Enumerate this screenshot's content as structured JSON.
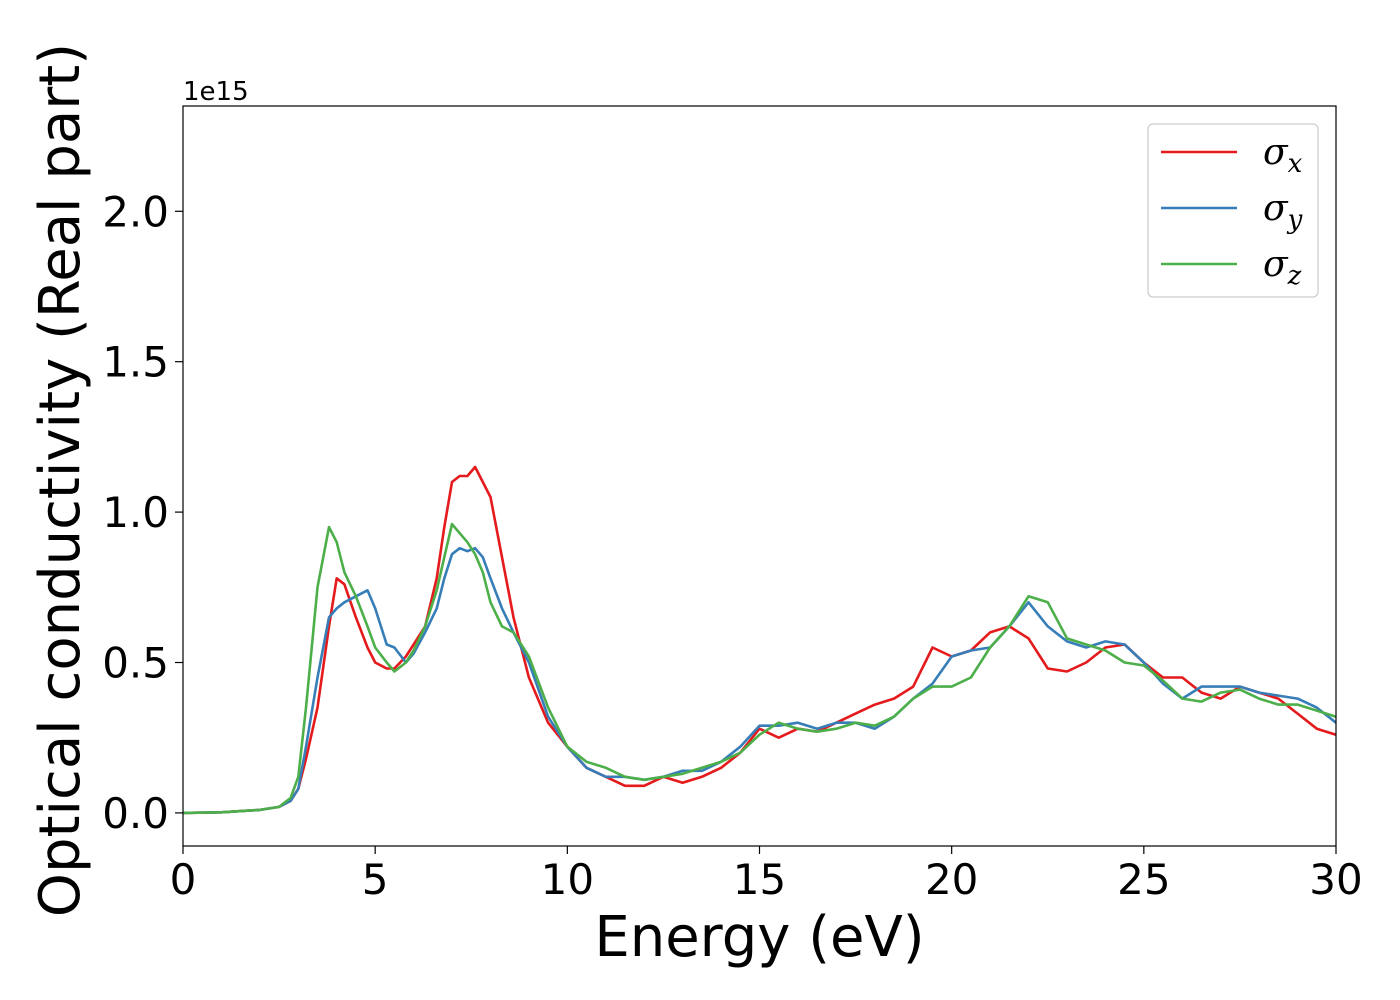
{
  "chart_data": {
    "type": "line",
    "xlabel": "Energy (eV)",
    "ylabel": "Optical conductivity (Real part)",
    "offset_text": "1e15",
    "xlim": [
      0,
      30
    ],
    "ylim": [
      -0.11,
      2.35
    ],
    "x_ticks": [
      "0",
      "5",
      "10",
      "15",
      "20",
      "25",
      "30"
    ],
    "y_ticks": [
      "0.0",
      "0.5",
      "1.0",
      "1.5",
      "2.0"
    ],
    "grid": false,
    "legend_position": "top-right",
    "series": [
      {
        "name": "σx",
        "symbol": "σ",
        "subscript": "x",
        "color": "#e41a1c",
        "x": [
          0,
          1,
          2,
          2.5,
          2.8,
          3.0,
          3.2,
          3.5,
          3.8,
          4.0,
          4.2,
          4.5,
          4.8,
          5.0,
          5.3,
          5.5,
          5.8,
          6.0,
          6.3,
          6.6,
          6.8,
          7.0,
          7.2,
          7.4,
          7.6,
          7.8,
          8.0,
          8.3,
          8.6,
          9.0,
          9.5,
          10.0,
          10.5,
          11.0,
          11.5,
          12.0,
          12.5,
          13.0,
          13.5,
          14.0,
          14.5,
          15.0,
          15.5,
          16.0,
          16.5,
          17.0,
          17.5,
          18.0,
          18.5,
          19.0,
          19.5,
          20.0,
          20.5,
          21.0,
          21.5,
          22.0,
          22.5,
          23.0,
          23.5,
          24.0,
          24.5,
          25.0,
          25.5,
          26.0,
          26.5,
          27.0,
          27.5,
          28.0,
          28.5,
          29.0,
          29.5,
          30.0
        ],
        "y": [
          0.0,
          0.002,
          0.01,
          0.02,
          0.04,
          0.08,
          0.18,
          0.35,
          0.62,
          0.78,
          0.76,
          0.65,
          0.55,
          0.5,
          0.48,
          0.48,
          0.52,
          0.56,
          0.62,
          0.78,
          0.95,
          1.1,
          1.12,
          1.12,
          1.15,
          1.1,
          1.05,
          0.85,
          0.65,
          0.45,
          0.3,
          0.22,
          0.15,
          0.12,
          0.09,
          0.09,
          0.12,
          0.1,
          0.12,
          0.15,
          0.2,
          0.28,
          0.25,
          0.28,
          0.27,
          0.3,
          0.33,
          0.36,
          0.38,
          0.42,
          0.55,
          0.52,
          0.54,
          0.6,
          0.62,
          0.58,
          0.48,
          0.47,
          0.5,
          0.55,
          0.56,
          0.5,
          0.45,
          0.45,
          0.4,
          0.38,
          0.42,
          0.4,
          0.38,
          0.33,
          0.28,
          0.26
        ]
      },
      {
        "name": "σy",
        "symbol": "σ",
        "subscript": "y",
        "color": "#377eb8",
        "x": [
          0,
          1,
          2,
          2.5,
          2.8,
          3.0,
          3.2,
          3.5,
          3.8,
          4.0,
          4.2,
          4.5,
          4.8,
          5.0,
          5.3,
          5.5,
          5.8,
          6.0,
          6.3,
          6.6,
          6.8,
          7.0,
          7.2,
          7.4,
          7.6,
          7.8,
          8.0,
          8.3,
          8.6,
          9.0,
          9.5,
          10.0,
          10.5,
          11.0,
          11.5,
          12.0,
          12.5,
          13.0,
          13.5,
          14.0,
          14.5,
          15.0,
          15.5,
          16.0,
          16.5,
          17.0,
          17.5,
          18.0,
          18.5,
          19.0,
          19.5,
          20.0,
          20.5,
          21.0,
          21.5,
          22.0,
          22.5,
          23.0,
          23.5,
          24.0,
          24.5,
          25.0,
          25.5,
          26.0,
          26.5,
          27.0,
          27.5,
          28.0,
          28.5,
          29.0,
          29.5,
          30.0
        ],
        "y": [
          0.0,
          0.002,
          0.01,
          0.02,
          0.04,
          0.08,
          0.22,
          0.45,
          0.65,
          0.68,
          0.7,
          0.72,
          0.74,
          0.68,
          0.56,
          0.55,
          0.5,
          0.53,
          0.6,
          0.68,
          0.78,
          0.86,
          0.88,
          0.87,
          0.88,
          0.85,
          0.78,
          0.68,
          0.6,
          0.5,
          0.32,
          0.22,
          0.15,
          0.12,
          0.12,
          0.11,
          0.12,
          0.14,
          0.14,
          0.17,
          0.22,
          0.29,
          0.29,
          0.3,
          0.28,
          0.3,
          0.3,
          0.28,
          0.32,
          0.38,
          0.43,
          0.52,
          0.54,
          0.55,
          0.62,
          0.7,
          0.62,
          0.57,
          0.55,
          0.57,
          0.56,
          0.5,
          0.43,
          0.38,
          0.42,
          0.42,
          0.42,
          0.4,
          0.39,
          0.38,
          0.35,
          0.3
        ]
      },
      {
        "name": "σz",
        "symbol": "σ",
        "subscript": "z",
        "color": "#4daf4a",
        "x": [
          0,
          1,
          2,
          2.5,
          2.8,
          3.0,
          3.2,
          3.5,
          3.8,
          4.0,
          4.2,
          4.5,
          4.8,
          5.0,
          5.3,
          5.5,
          5.8,
          6.0,
          6.3,
          6.6,
          6.8,
          7.0,
          7.2,
          7.4,
          7.6,
          7.8,
          8.0,
          8.3,
          8.6,
          9.0,
          9.5,
          10.0,
          10.5,
          11.0,
          11.5,
          12.0,
          12.5,
          13.0,
          13.5,
          14.0,
          14.5,
          15.0,
          15.5,
          16.0,
          16.5,
          17.0,
          17.5,
          18.0,
          18.5,
          19.0,
          19.5,
          20.0,
          20.5,
          21.0,
          21.5,
          22.0,
          22.5,
          23.0,
          23.5,
          24.0,
          24.5,
          25.0,
          25.5,
          26.0,
          26.5,
          27.0,
          27.5,
          28.0,
          28.5,
          29.0,
          29.5,
          30.0
        ],
        "y": [
          0.0,
          0.002,
          0.01,
          0.02,
          0.05,
          0.12,
          0.35,
          0.75,
          0.95,
          0.9,
          0.8,
          0.72,
          0.62,
          0.55,
          0.5,
          0.47,
          0.5,
          0.54,
          0.62,
          0.74,
          0.85,
          0.96,
          0.93,
          0.9,
          0.86,
          0.8,
          0.7,
          0.62,
          0.6,
          0.52,
          0.35,
          0.22,
          0.17,
          0.15,
          0.12,
          0.11,
          0.12,
          0.13,
          0.15,
          0.17,
          0.2,
          0.26,
          0.3,
          0.28,
          0.27,
          0.28,
          0.3,
          0.29,
          0.32,
          0.38,
          0.42,
          0.42,
          0.45,
          0.55,
          0.62,
          0.72,
          0.7,
          0.58,
          0.56,
          0.54,
          0.5,
          0.49,
          0.44,
          0.38,
          0.37,
          0.4,
          0.41,
          0.38,
          0.36,
          0.36,
          0.34,
          0.32
        ]
      }
    ]
  }
}
